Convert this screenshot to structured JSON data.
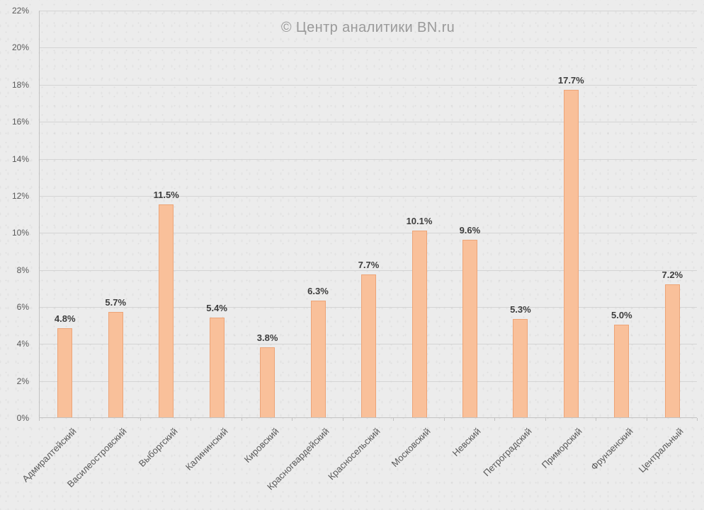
{
  "chart": {
    "watermark": "© Центр аналитики BN.ru"
  },
  "chart_data": {
    "type": "bar",
    "title": "",
    "annotation": "© Центр аналитики BN.ru",
    "categories": [
      "Адмиралтейский",
      "Василеостровский",
      "Выборгский",
      "Калининский",
      "Кировский",
      "Красногвардейский",
      "Красносельский",
      "Московский",
      "Невский",
      "Петроградский",
      "Приморский",
      "Фрунзенский",
      "Центральный"
    ],
    "values": [
      4.8,
      5.7,
      11.5,
      5.4,
      3.8,
      6.3,
      7.7,
      10.1,
      9.6,
      5.3,
      17.7,
      5.0,
      7.2
    ],
    "value_labels": [
      "4.8%",
      "5.7%",
      "11.5%",
      "5.4%",
      "3.8%",
      "6.3%",
      "7.7%",
      "10.1%",
      "9.6%",
      "5.3%",
      "17.7%",
      "5.0%",
      "7.2%"
    ],
    "xlabel": "",
    "ylabel": "",
    "ylim": [
      0,
      22
    ],
    "ytick_step": 2,
    "ytick_labels": [
      "0%",
      "2%",
      "4%",
      "6%",
      "8%",
      "10%",
      "12%",
      "14%",
      "16%",
      "18%",
      "20%",
      "22%"
    ],
    "grid": true,
    "legend": "none",
    "bar_color": "#f9c09a",
    "bar_border_color": "#eda477",
    "value_label_color": "#3d3d3d",
    "axis_text_color": "#595959"
  }
}
